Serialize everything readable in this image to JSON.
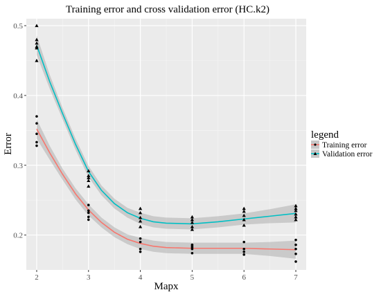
{
  "chart_data": {
    "type": "scatter",
    "title": "Training error and cross validation error (HC.k2)",
    "xlabel": "Mapx",
    "ylabel": "Error",
    "xlim": [
      1.8,
      7.2
    ],
    "ylim": [
      0.15,
      0.51
    ],
    "x_ticks": [
      2,
      3,
      4,
      5,
      6,
      7
    ],
    "y_ticks": [
      0.2,
      0.3,
      0.4,
      0.5
    ],
    "grid": true,
    "legend": {
      "title": "legend",
      "placement": "right"
    },
    "series": [
      {
        "name": "Training error",
        "color": "#F8766D",
        "marker": "circle",
        "points": [
          [
            2,
            0.37
          ],
          [
            2,
            0.36
          ],
          [
            2,
            0.345
          ],
          [
            2,
            0.333
          ],
          [
            2,
            0.328
          ],
          [
            3,
            0.243
          ],
          [
            3,
            0.235
          ],
          [
            3,
            0.232
          ],
          [
            3,
            0.226
          ],
          [
            3,
            0.222
          ],
          [
            4,
            0.195
          ],
          [
            4,
            0.19
          ],
          [
            4,
            0.18
          ],
          [
            4,
            0.176
          ],
          [
            5,
            0.186
          ],
          [
            5,
            0.184
          ],
          [
            5,
            0.182
          ],
          [
            5,
            0.18
          ],
          [
            5,
            0.174
          ],
          [
            6,
            0.19
          ],
          [
            6,
            0.18
          ],
          [
            6,
            0.176
          ],
          [
            6,
            0.172
          ],
          [
            7,
            0.193
          ],
          [
            7,
            0.186
          ],
          [
            7,
            0.18
          ],
          [
            7,
            0.173
          ],
          [
            7,
            0.162
          ]
        ],
        "smooth": [
          [
            2,
            0.352
          ],
          [
            2.25,
            0.318
          ],
          [
            2.5,
            0.287
          ],
          [
            2.75,
            0.259
          ],
          [
            3,
            0.236
          ],
          [
            3.25,
            0.218
          ],
          [
            3.5,
            0.204
          ],
          [
            3.75,
            0.194
          ],
          [
            4,
            0.188
          ],
          [
            4.25,
            0.184
          ],
          [
            4.5,
            0.182
          ],
          [
            5,
            0.181
          ],
          [
            5.5,
            0.181
          ],
          [
            6,
            0.181
          ],
          [
            6.5,
            0.18
          ],
          [
            7,
            0.179
          ]
        ],
        "band": [
          0.014,
          0.01,
          0.008,
          0.008,
          0.008,
          0.007,
          0.007,
          0.007,
          0.008,
          0.008,
          0.008,
          0.008,
          0.008,
          0.008,
          0.01,
          0.013
        ]
      },
      {
        "name": "Validation error",
        "color": "#00BFC4",
        "marker": "triangle",
        "points": [
          [
            2,
            0.5
          ],
          [
            2,
            0.48
          ],
          [
            2,
            0.475
          ],
          [
            2,
            0.47
          ],
          [
            2,
            0.468
          ],
          [
            2,
            0.45
          ],
          [
            3,
            0.292
          ],
          [
            3,
            0.285
          ],
          [
            3,
            0.282
          ],
          [
            3,
            0.278
          ],
          [
            3,
            0.27
          ],
          [
            4,
            0.238
          ],
          [
            4,
            0.232
          ],
          [
            4,
            0.225
          ],
          [
            4,
            0.22
          ],
          [
            4,
            0.212
          ],
          [
            5,
            0.226
          ],
          [
            5,
            0.222
          ],
          [
            5,
            0.218
          ],
          [
            5,
            0.212
          ],
          [
            5,
            0.208
          ],
          [
            6,
            0.238
          ],
          [
            6,
            0.234
          ],
          [
            6,
            0.228
          ],
          [
            6,
            0.222
          ],
          [
            6,
            0.214
          ],
          [
            7,
            0.242
          ],
          [
            7,
            0.238
          ],
          [
            7,
            0.235
          ],
          [
            7,
            0.23
          ],
          [
            7,
            0.226
          ],
          [
            7,
            0.222
          ]
        ],
        "smooth": [
          [
            2,
            0.472
          ],
          [
            2.25,
            0.42
          ],
          [
            2.5,
            0.374
          ],
          [
            2.75,
            0.33
          ],
          [
            3,
            0.291
          ],
          [
            3.25,
            0.264
          ],
          [
            3.5,
            0.245
          ],
          [
            3.75,
            0.232
          ],
          [
            4,
            0.224
          ],
          [
            4.25,
            0.219
          ],
          [
            4.5,
            0.217
          ],
          [
            5,
            0.216
          ],
          [
            5.5,
            0.219
          ],
          [
            6,
            0.223
          ],
          [
            6.5,
            0.227
          ],
          [
            7,
            0.231
          ]
        ],
        "band": [
          0.014,
          0.01,
          0.008,
          0.008,
          0.008,
          0.007,
          0.007,
          0.007,
          0.008,
          0.008,
          0.008,
          0.008,
          0.008,
          0.008,
          0.01,
          0.013
        ]
      }
    ]
  }
}
